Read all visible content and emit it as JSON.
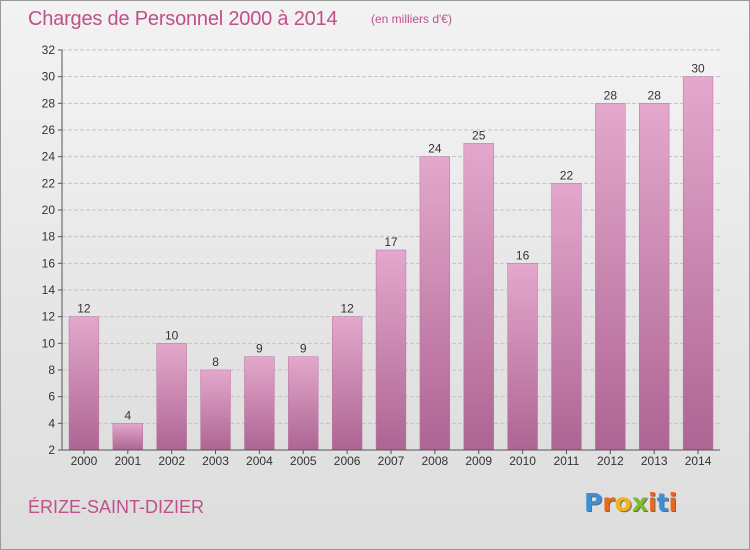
{
  "header": {
    "title": "Charges de Personnel 2000 à 2014",
    "subtitle": "(en milliers d'€)"
  },
  "footer": {
    "commune": "ÉRIZE-SAINT-DIZIER",
    "logo_letters": [
      "P",
      "r",
      "o",
      "x",
      "i",
      "t",
      "i"
    ],
    "logo_colors": [
      "#3d8fd6",
      "#e8681e",
      "#f0b419",
      "#7dbb2e",
      "#e8681e",
      "#3d8fd6",
      "#e8681e"
    ]
  },
  "chart_data": {
    "type": "bar",
    "title": "Charges de Personnel 2000 à 2014",
    "subtitle": "(en milliers d'€)",
    "categories": [
      "2000",
      "2001",
      "2002",
      "2003",
      "2004",
      "2005",
      "2006",
      "2007",
      "2008",
      "2009",
      "2010",
      "2011",
      "2012",
      "2013",
      "2014"
    ],
    "values": [
      12,
      4,
      10,
      8,
      9,
      9,
      12,
      17,
      24,
      25,
      16,
      22,
      28,
      28,
      30
    ],
    "ylim": [
      2,
      32
    ],
    "yticks": [
      2,
      4,
      6,
      8,
      10,
      12,
      14,
      16,
      18,
      20,
      22,
      24,
      26,
      28,
      30,
      32
    ],
    "grid": true,
    "bar_color": "#d690b8"
  }
}
